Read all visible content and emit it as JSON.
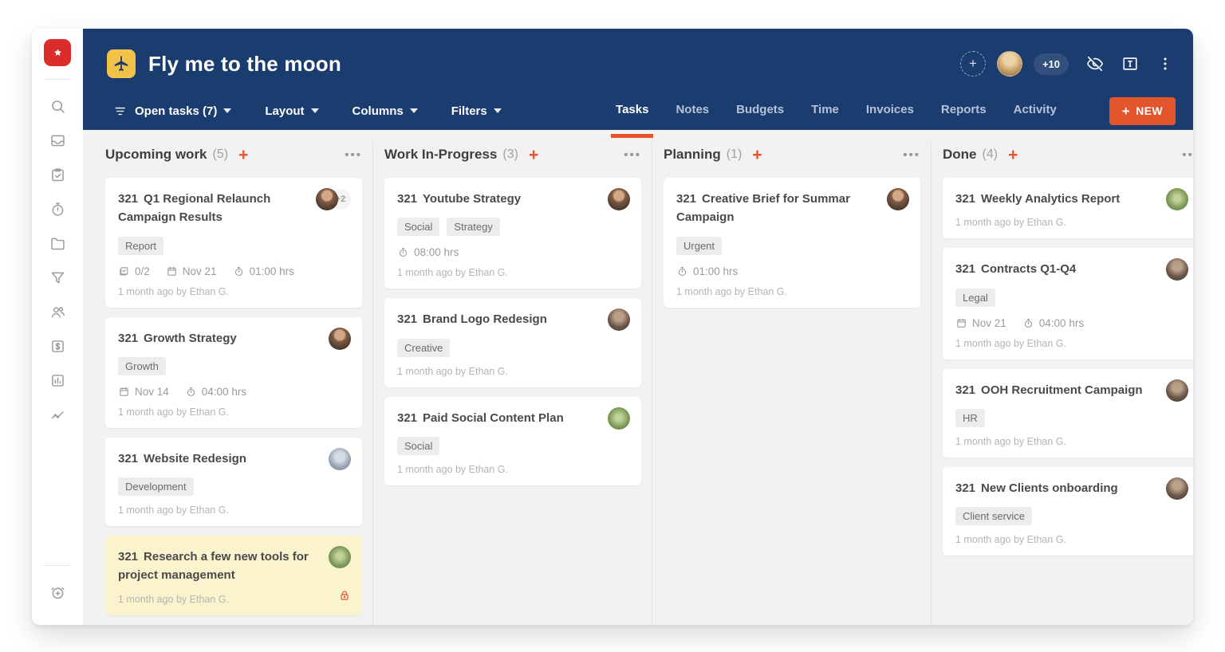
{
  "colors": {
    "navy": "#1b3c6e",
    "accent_orange": "#e8532c",
    "new_button_orange": "#e2552d",
    "logo_red": "#db2b2b",
    "project_icon_yellow": "#f2c248",
    "highlight_card_yellow": "#fbf2ce"
  },
  "sidebar": {
    "logo_icon": "app-logo-icon",
    "items": [
      {
        "icon": "search"
      },
      {
        "icon": "inbox"
      },
      {
        "icon": "tasks-clipboard"
      },
      {
        "icon": "timer"
      },
      {
        "icon": "folder"
      },
      {
        "icon": "filter-funnel"
      },
      {
        "icon": "team"
      },
      {
        "icon": "billing-dollar"
      },
      {
        "icon": "bar-chart"
      },
      {
        "icon": "trend-line"
      }
    ],
    "bottom_items": [
      {
        "icon": "alarm-add"
      }
    ]
  },
  "header": {
    "project_icon": "airplane-icon",
    "title": "Fly me to the moon",
    "toolbar": [
      {
        "label": "Open tasks (7)",
        "icon": "filter-lines"
      },
      {
        "label": "Layout"
      },
      {
        "label": "Columns"
      },
      {
        "label": "Filters"
      }
    ],
    "members": {
      "add_label": "+",
      "avatar": "av-woman-blonde",
      "overflow": "+10"
    },
    "action_icons": [
      "eye-off-icon",
      "text-box-icon",
      "kebab-menu-icon"
    ],
    "tabs": [
      {
        "label": "Tasks",
        "active": true
      },
      {
        "label": "Notes",
        "active": false
      },
      {
        "label": "Budgets",
        "active": false
      },
      {
        "label": "Time",
        "active": false
      },
      {
        "label": "Invoices",
        "active": false
      },
      {
        "label": "Reports",
        "active": false
      },
      {
        "label": "Activity",
        "active": false
      }
    ],
    "new_button": "NEW"
  },
  "board": {
    "columns": [
      {
        "title": "Upcoming work",
        "count": "(5)",
        "cards": [
          {
            "number": "321",
            "title": "Q1 Regional Relaunch Campaign Results",
            "tags": [
              "Report"
            ],
            "checklist": "0/2",
            "date": "Nov 21",
            "time": "01:00 hrs",
            "footer": "1 month ago by Ethan G.",
            "avatar": "av-man-brown",
            "avatar_overflow": "+2"
          },
          {
            "number": "321",
            "title": "Growth Strategy",
            "tags": [
              "Growth"
            ],
            "date": "Nov 14",
            "time": "04:00 hrs",
            "footer": "1 month ago by Ethan G.",
            "avatar": "av-man-brown"
          },
          {
            "number": "321",
            "title": "Website Redesign",
            "tags": [
              "Development"
            ],
            "footer": "1 month ago by Ethan G.",
            "avatar": "av-man-gray"
          },
          {
            "number": "321",
            "title": "Research a few new tools for project management",
            "footer": "1 month ago by Ethan G.",
            "avatar": "av-outdoor-green",
            "highlight": true,
            "locked": true
          }
        ]
      },
      {
        "title": "Work In-Progress",
        "count": "(3)",
        "cards": [
          {
            "number": "321",
            "title": "Youtube Strategy",
            "tags": [
              "Social",
              "Strategy"
            ],
            "time": "08:00 hrs",
            "footer": "1 month ago by Ethan G.",
            "avatar": "av-man-brown"
          },
          {
            "number": "321",
            "title": "Brand Logo Redesign",
            "tags": [
              "Creative"
            ],
            "footer": "1 month ago by Ethan G.",
            "avatar": "av-man-dark"
          },
          {
            "number": "321",
            "title": "Paid Social Content Plan",
            "tags": [
              "Social"
            ],
            "footer": "1 month ago by Ethan G.",
            "avatar": "av-outdoor-green"
          }
        ]
      },
      {
        "title": "Planning",
        "count": "(1)",
        "cards": [
          {
            "number": "321",
            "title": "Creative Brief for Summar Campaign",
            "tags": [
              "Urgent"
            ],
            "time": "01:00 hrs",
            "footer": "1 month ago by Ethan G.",
            "avatar": "av-man-brown"
          }
        ]
      },
      {
        "title": "Done",
        "count": "(4)",
        "cards": [
          {
            "number": "321",
            "title": "Weekly Analytics Report",
            "footer": "1 month ago by Ethan G.",
            "avatar": "av-outdoor-green"
          },
          {
            "number": "321",
            "title": "Contracts Q1-Q4",
            "tags": [
              "Legal"
            ],
            "date": "Nov 21",
            "time": "04:00 hrs",
            "footer": "1 month ago by Ethan G.",
            "avatar": "av-man-dark"
          },
          {
            "number": "321",
            "title": "OOH Recruitment Campaign",
            "tags": [
              "HR"
            ],
            "footer": "1 month ago by Ethan G.",
            "avatar": "av-man-dark"
          },
          {
            "number": "321",
            "title": "New Clients onboarding",
            "tags": [
              "Client service"
            ],
            "footer": "1 month ago by Ethan G.",
            "avatar": "av-man-dark"
          }
        ]
      }
    ]
  }
}
